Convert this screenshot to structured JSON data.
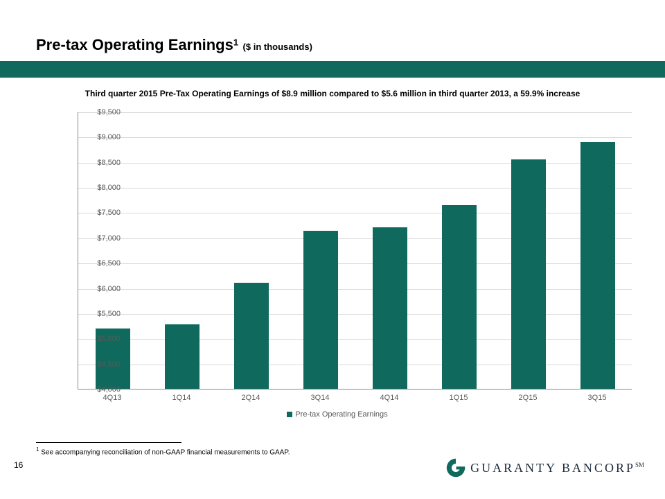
{
  "page": {
    "number": "16",
    "title_main": "Pre-tax Operating Earnings",
    "title_superscript": "1",
    "title_subtext": "($ in thousands)",
    "band_color": "#0f6a5d",
    "subtitle": "Third quarter 2015 Pre-Tax Operating Earnings of $8.9 million compared to $5.6 million in third quarter 2013, a 59.9% increase",
    "footnote_marker": "1",
    "footnote_text": " See accompanying reconciliation of non-GAAP financial measurements to GAAP."
  },
  "chart": {
    "type": "bar",
    "categories": [
      "4Q13",
      "1Q14",
      "2Q14",
      "3Q14",
      "4Q14",
      "1Q15",
      "2Q15",
      "3Q15"
    ],
    "values": [
      5200,
      5280,
      6100,
      7130,
      7200,
      7650,
      8550,
      8900
    ],
    "bar_color": "#0f6a5d",
    "bar_width_ratio": 0.5,
    "ylim_min": 4000,
    "ylim_max": 9500,
    "ytick_step": 500,
    "ytick_labels": [
      "$4,000",
      "$4,500",
      "$5,000",
      "$5,500",
      "$6,000",
      "$6,500",
      "$7,000",
      "$7,500",
      "$8,000",
      "$8,500",
      "$9,000",
      "$9,500"
    ],
    "grid_color": "#d9d9d9",
    "axis_color": "#888888",
    "tick_font_size": 11,
    "tick_color": "#595959",
    "background_color": "#ffffff",
    "legend_label": "Pre-tax Operating Earnings"
  },
  "logo": {
    "brand_text": "GUARANTY BANCORP",
    "mark_suffix": "SM",
    "icon_color": "#0f6a5d",
    "text_color": "#1a2a3a"
  }
}
